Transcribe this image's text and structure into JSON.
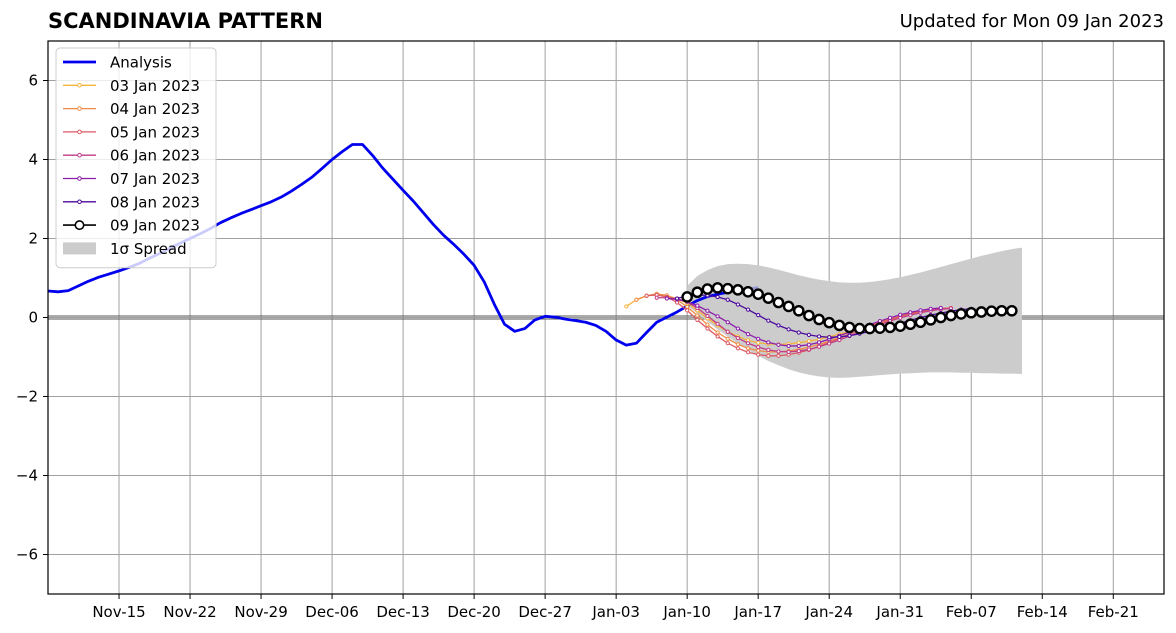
{
  "title": "SCANDINAVIA PATTERN",
  "subtitle": "Updated for Mon 09 Jan 2023",
  "chart_data": {
    "type": "line",
    "title": "SCANDINAVIA PATTERN",
    "subtitle": "Updated for Mon 09 Jan 2023",
    "xlabel": "",
    "ylabel": "",
    "ylim": [
      -7,
      7
    ],
    "xlim": [
      "2022-11-08",
      "2023-02-26"
    ],
    "yticks": [
      -6,
      -4,
      -2,
      0,
      2,
      4,
      6
    ],
    "ytick_labels": [
      "−6",
      "−4",
      "−2",
      "0",
      "2",
      "4",
      "6"
    ],
    "xticks": [
      "2022-11-15",
      "2022-11-22",
      "2022-11-29",
      "2022-12-06",
      "2022-12-13",
      "2022-12-20",
      "2022-12-27",
      "2023-01-03",
      "2023-01-10",
      "2023-01-17",
      "2023-01-24",
      "2023-01-31",
      "2023-02-07",
      "2023-02-14",
      "2023-02-21"
    ],
    "xtick_labels": [
      "Nov-15",
      "Nov-22",
      "Nov-29",
      "Dec-06",
      "Dec-13",
      "Dec-20",
      "Dec-27",
      "Jan-03",
      "Jan-10",
      "Jan-17",
      "Jan-24",
      "Jan-31",
      "Feb-07",
      "Feb-14",
      "Feb-21"
    ],
    "grid": true,
    "legend_position": "top-left",
    "series": [
      {
        "name": "Analysis",
        "color": "#0000ee",
        "x_start": "2022-11-08",
        "values": [
          0.67,
          0.65,
          0.68,
          0.8,
          0.92,
          1.02,
          1.1,
          1.18,
          1.27,
          1.37,
          1.5,
          1.62,
          1.75,
          1.88,
          2.0,
          2.12,
          2.25,
          2.4,
          2.52,
          2.63,
          2.73,
          2.83,
          2.93,
          3.05,
          3.2,
          3.37,
          3.55,
          3.77,
          4.0,
          4.2,
          4.38,
          4.38,
          4.1,
          3.78,
          3.5,
          3.22,
          2.95,
          2.65,
          2.35,
          2.08,
          1.85,
          1.6,
          1.32,
          0.9,
          0.33,
          -0.17,
          -0.35,
          -0.28,
          -0.06,
          0.03,
          0.01,
          -0.04,
          -0.08,
          -0.12,
          -0.2,
          -0.35,
          -0.57,
          -0.7,
          -0.65,
          -0.38,
          -0.12,
          0.01,
          0.14,
          0.29,
          0.43,
          0.53,
          0.59,
          0.64,
          0.68,
          0.72,
          0.76
        ],
        "light_tail": 3
      },
      {
        "name": "03 Jan 2023",
        "color": "#f5b43c",
        "x_start": "2023-01-04",
        "values": [
          0.28,
          0.45,
          0.55,
          0.58,
          0.55,
          0.48,
          0.36,
          0.18,
          -0.02,
          -0.2,
          -0.36,
          -0.48,
          -0.58,
          -0.64,
          -0.67,
          -0.68,
          -0.67,
          -0.64,
          -0.6,
          -0.55,
          -0.49,
          -0.42,
          -0.35,
          -0.27,
          -0.2,
          -0.12,
          -0.04,
          0.03,
          0.09,
          0.15,
          0.19,
          0.22,
          0.23
        ]
      },
      {
        "name": "04 Jan 2023",
        "color": "#ee8c46",
        "x_start": "2023-01-05",
        "values": [
          0.45,
          0.55,
          0.6,
          0.56,
          0.45,
          0.27,
          0.05,
          -0.18,
          -0.38,
          -0.54,
          -0.68,
          -0.78,
          -0.84,
          -0.87,
          -0.87,
          -0.85,
          -0.81,
          -0.75,
          -0.68,
          -0.6,
          -0.51,
          -0.42,
          -0.33,
          -0.24,
          -0.16,
          -0.08,
          0.0,
          0.07,
          0.13,
          0.18,
          0.21,
          0.23
        ]
      },
      {
        "name": "05 Jan 2023",
        "color": "#dc5a64",
        "x_start": "2023-01-06",
        "values": [
          0.55,
          0.57,
          0.52,
          0.38,
          0.18,
          -0.06,
          -0.28,
          -0.48,
          -0.65,
          -0.78,
          -0.88,
          -0.94,
          -0.97,
          -0.97,
          -0.94,
          -0.89,
          -0.82,
          -0.73,
          -0.63,
          -0.53,
          -0.42,
          -0.32,
          -0.22,
          -0.13,
          -0.05,
          0.03,
          0.1,
          0.16,
          0.2,
          0.23,
          0.24
        ]
      },
      {
        "name": "06 Jan 2023",
        "color": "#bf3c87",
        "x_start": "2023-01-07",
        "values": [
          0.5,
          0.5,
          0.48,
          0.4,
          0.24,
          0.04,
          -0.16,
          -0.36,
          -0.52,
          -0.65,
          -0.75,
          -0.82,
          -0.86,
          -0.87,
          -0.85,
          -0.81,
          -0.74,
          -0.66,
          -0.57,
          -0.47,
          -0.37,
          -0.27,
          -0.18,
          -0.09,
          -0.01,
          0.06,
          0.12,
          0.17,
          0.21,
          0.23
        ]
      },
      {
        "name": "07 Jan 2023",
        "color": "#8c1eaa",
        "x_start": "2023-01-08",
        "values": [
          0.48,
          0.46,
          0.4,
          0.3,
          0.17,
          0.03,
          -0.12,
          -0.28,
          -0.42,
          -0.54,
          -0.63,
          -0.69,
          -0.72,
          -0.72,
          -0.69,
          -0.63,
          -0.55,
          -0.46,
          -0.37,
          -0.27,
          -0.18,
          -0.09,
          -0.01,
          0.07,
          0.13,
          0.18,
          0.22,
          0.24
        ]
      },
      {
        "name": "08 Jan 2023",
        "color": "#4b0a9c",
        "x_start": "2023-01-09",
        "values": [
          0.48,
          0.55,
          0.57,
          0.56,
          0.52,
          0.45,
          0.33,
          0.2,
          0.06,
          -0.08,
          -0.2,
          -0.3,
          -0.38,
          -0.44,
          -0.48,
          -0.5,
          -0.49,
          -0.46,
          -0.41,
          -0.35,
          -0.28,
          -0.21,
          -0.14,
          -0.07,
          0.0,
          0.06,
          0.11,
          0.16,
          0.2,
          0.22
        ]
      },
      {
        "name": "09 Jan 2023",
        "color": "#000000",
        "x_start": "2023-01-10",
        "values": [
          0.52,
          0.64,
          0.72,
          0.75,
          0.73,
          0.7,
          0.65,
          0.59,
          0.49,
          0.38,
          0.28,
          0.17,
          0.05,
          -0.05,
          -0.13,
          -0.2,
          -0.25,
          -0.28,
          -0.28,
          -0.27,
          -0.25,
          -0.22,
          -0.17,
          -0.12,
          -0.06,
          0.0,
          0.05,
          0.09,
          0.12,
          0.14,
          0.16,
          0.17,
          0.17
        ]
      }
    ],
    "spread": {
      "name": "1σ Spread",
      "color": "#cccccc",
      "x_start": "2023-01-10",
      "upper": [
        0.8,
        1.05,
        1.2,
        1.3,
        1.35,
        1.36,
        1.35,
        1.32,
        1.27,
        1.21,
        1.14,
        1.07,
        1.01,
        0.96,
        0.92,
        0.89,
        0.88,
        0.88,
        0.9,
        0.93,
        0.97,
        1.02,
        1.08,
        1.14,
        1.21,
        1.28,
        1.35,
        1.42,
        1.49,
        1.56,
        1.62,
        1.68,
        1.73,
        1.77
      ],
      "lower": [
        0.3,
        0.1,
        -0.1,
        -0.3,
        -0.48,
        -0.66,
        -0.82,
        -0.97,
        -1.1,
        -1.21,
        -1.31,
        -1.39,
        -1.45,
        -1.49,
        -1.52,
        -1.53,
        -1.52,
        -1.5,
        -1.48,
        -1.46,
        -1.44,
        -1.42,
        -1.41,
        -1.4,
        -1.39,
        -1.39,
        -1.39,
        -1.4,
        -1.4,
        -1.41,
        -1.41,
        -1.42,
        -1.42,
        -1.43
      ]
    }
  }
}
